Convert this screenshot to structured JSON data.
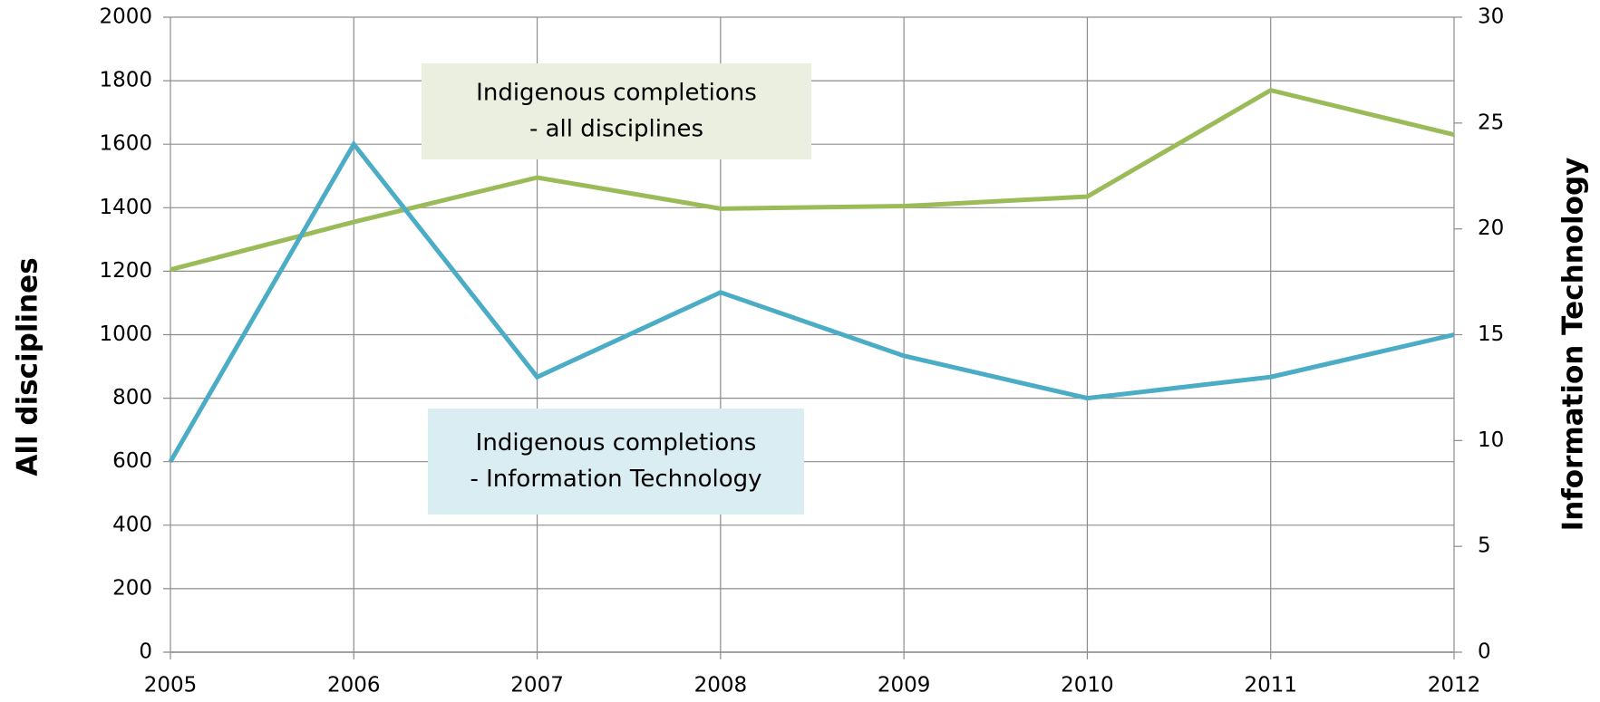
{
  "chart_data": {
    "type": "line",
    "y_label": "All disciplines",
    "y2_label": "Information Technology",
    "x": [
      2005,
      2006,
      2007,
      2008,
      2009,
      2010,
      2011,
      2012
    ],
    "xlim": [
      2005,
      2012
    ],
    "xticks": [
      2005,
      2006,
      2007,
      2008,
      2009,
      2010,
      2011,
      2012
    ],
    "ylim": [
      0,
      2000
    ],
    "yticks": [
      0,
      200,
      400,
      600,
      800,
      1000,
      1200,
      1400,
      1600,
      1800,
      2000
    ],
    "y2lim": [
      0,
      30
    ],
    "y2ticks": [
      0,
      5,
      10,
      15,
      20,
      25,
      30
    ],
    "grid": true,
    "series": [
      {
        "label": [
          "Indigenous completions",
          "- all disciplines"
        ],
        "color": "#9bbb59",
        "box_color": "#ebefdf",
        "values": [
          1205,
          1355,
          1495,
          1397,
          1405,
          1435,
          1770,
          1630
        ]
      },
      {
        "label": [
          "Indigenous completions",
          "- Information Technology"
        ],
        "color": "#4bacc6",
        "box_color": "#daedf3",
        "axis": "y2",
        "values": [
          9,
          24,
          13,
          17,
          14,
          12,
          13,
          15
        ]
      }
    ]
  }
}
